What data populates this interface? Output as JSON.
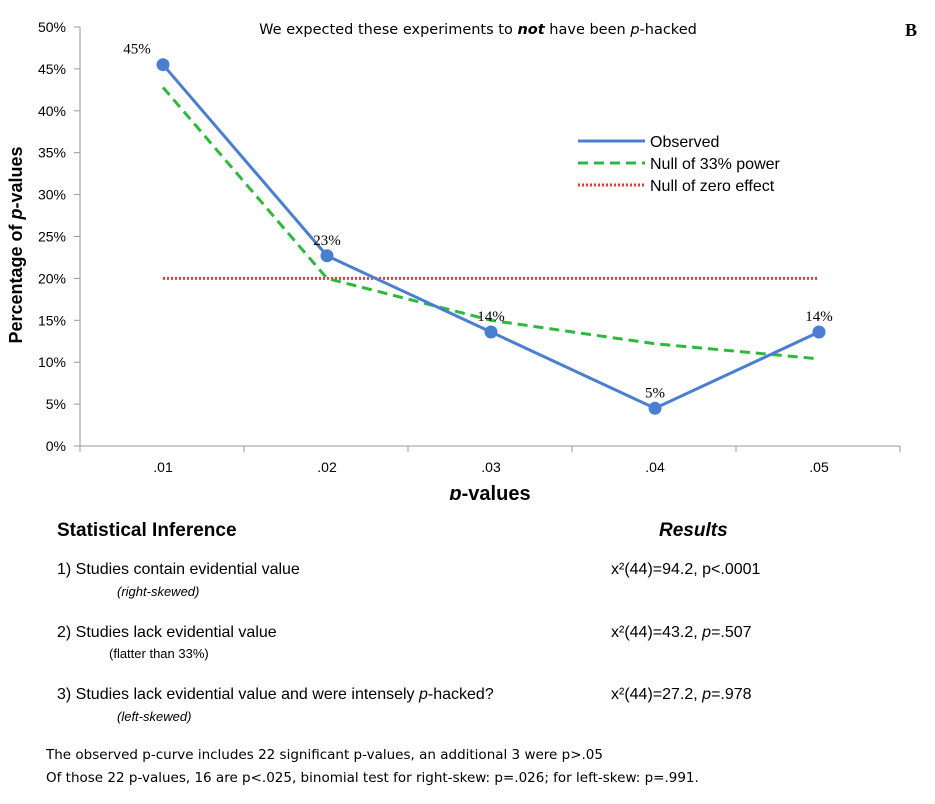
{
  "chart_data": {
    "type": "line",
    "title": "We expected these experiments to not have been p-hacked",
    "title_parts": {
      "prefix": "We expected these experiments to ",
      "emph": "not",
      "middle": " have been ",
      "italic": "p",
      "suffix": "-hacked"
    },
    "panel_label": "B",
    "xlabel": "p-values",
    "xlabel_parts": {
      "italic": "p",
      "rest": "-values"
    },
    "ylabel": "Percentage of p-values",
    "ylabel_parts": {
      "prefix": "Percentage of ",
      "italic": "p",
      "suffix": "-values"
    },
    "categories": [
      ".01",
      ".02",
      ".03",
      ".04",
      ".05"
    ],
    "ylim": [
      0,
      50
    ],
    "y_ticks": [
      "0%",
      "5%",
      "10%",
      "15%",
      "20%",
      "25%",
      "30%",
      "35%",
      "40%",
      "45%",
      "50%"
    ],
    "grid": false,
    "legend_position": "top-right",
    "series": [
      {
        "name": "Observed",
        "values": [
          45.5,
          22.7,
          13.6,
          4.5,
          13.6
        ],
        "labels": [
          "45%",
          "23%",
          "14%",
          "5%",
          "14%"
        ],
        "color": "#4a7ed0",
        "style": "solid",
        "markers": true
      },
      {
        "name": "Null of 33% power",
        "values": [
          42.8,
          20.0,
          15.0,
          12.2,
          10.4
        ],
        "color": "#2eb83c",
        "style": "dashed",
        "markers": false
      },
      {
        "name": "Null of zero effect",
        "values": [
          20,
          20,
          20,
          20,
          20
        ],
        "color": "#e83a3a",
        "style": "dotted",
        "markers": false
      }
    ]
  },
  "inference": {
    "heading": "Statistical Inference",
    "results_heading": "Results",
    "rows": [
      {
        "label": "1) Studies contain evidential value",
        "sublabel": "(right-skewed)",
        "result": "x²(44)=94.2, p<.0001"
      },
      {
        "label": "2) Studies lack evidential value",
        "sublabel": "(flatter than 33%)",
        "result": "x²(44)=43.2, p=.507"
      },
      {
        "label": "3) Studies lack evidential value and were intensely p-hacked?",
        "sublabel": "(left-skewed)",
        "result": "x²(44)=27.2, p=.978"
      }
    ],
    "row2_result_parts": {
      "pre": "x²(44)=43.2, ",
      "italic": "p",
      "post": "=.507"
    },
    "row3_label_parts": {
      "pre": "3) Studies lack evidential value and were intensely ",
      "italic": "p",
      "post": "-hacked?"
    },
    "row3_result_parts": {
      "pre": "x²(44)=27.2, ",
      "italic": "p",
      "post": "=.978"
    }
  },
  "footer": {
    "line1": "The observed p-curve includes 22 significant p-values, an additional 3 were p>.05",
    "line2": "Of those 22 p-values, 16 are p<.025, binomial test for right-skew: p=.026; for left-skew: p=.991."
  }
}
